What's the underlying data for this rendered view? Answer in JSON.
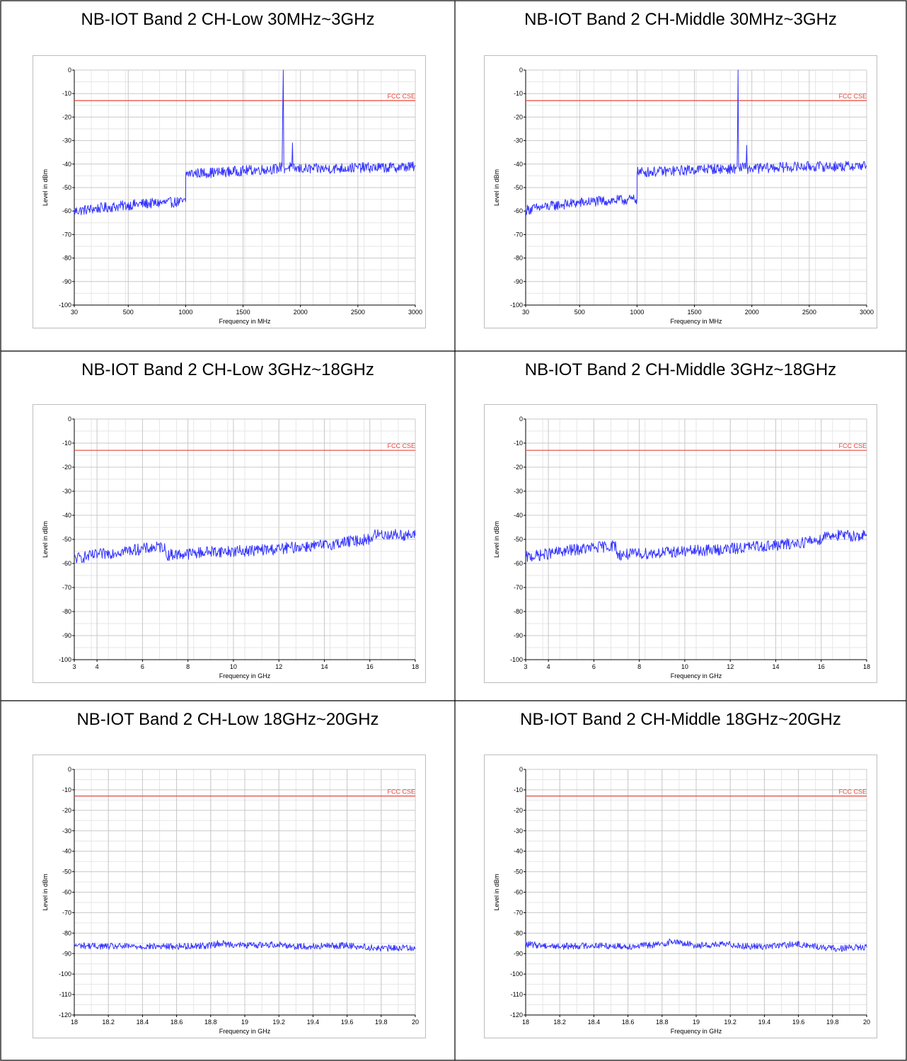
{
  "chart_data": [
    {
      "type": "line",
      "title": "NB-IOT Band 2 CH-Low 30MHz~3GHz",
      "xlabel": "Frequency in MHz",
      "ylabel": "Level in dBm",
      "xlim": [
        30,
        3000
      ],
      "ylim": [
        -100,
        0
      ],
      "xticks": [
        30,
        500,
        1000,
        1500,
        2000,
        2500,
        3000
      ],
      "xtick_labels": [
        "30",
        "500",
        "1000",
        "1500",
        "2000",
        "2500",
        "3000"
      ],
      "yticks": [
        0,
        -10,
        -20,
        -30,
        -40,
        -50,
        -60,
        -70,
        -80,
        -90,
        -100
      ],
      "ytick_labels": [
        "0",
        "-10",
        "-20",
        "-30",
        "-40",
        "-50",
        "-60",
        "-70",
        "-80",
        "-90",
        "-100"
      ],
      "grid": true,
      "limit": {
        "name": "FCC CSE",
        "value": -13,
        "color": "#e8473c"
      },
      "series": [
        {
          "color": "#3333ff",
          "points": [
            [
              30,
              -60
            ],
            [
              300,
              -58.5
            ],
            [
              600,
              -57
            ],
            [
              1000,
              -56
            ],
            [
              1001,
              -44
            ],
            [
              1300,
              -43.5
            ],
            [
              1600,
              -42.5
            ],
            [
              1800,
              -42
            ],
            [
              1840,
              -41
            ],
            [
              1845,
              -18
            ],
            [
              1850,
              0
            ],
            [
              1855,
              -41
            ],
            [
              1860,
              -42
            ],
            [
              1925,
              -41
            ],
            [
              1930,
              -31
            ],
            [
              1935,
              -42
            ],
            [
              2200,
              -42
            ],
            [
              2500,
              -41.5
            ],
            [
              2800,
              -41.5
            ],
            [
              3000,
              -41
            ]
          ],
          "noise": 2.2
        }
      ]
    },
    {
      "type": "line",
      "title": "NB-IOT Band 2 CH-Middle 30MHz~3GHz",
      "xlabel": "Frequency in MHz",
      "ylabel": "Level in dBm",
      "xlim": [
        30,
        3000
      ],
      "ylim": [
        -100,
        0
      ],
      "xticks": [
        30,
        500,
        1000,
        1500,
        2000,
        2500,
        3000
      ],
      "xtick_labels": [
        "30",
        "500",
        "1000",
        "1500",
        "2000",
        "2500",
        "3000"
      ],
      "yticks": [
        0,
        -10,
        -20,
        -30,
        -40,
        -50,
        -60,
        -70,
        -80,
        -90,
        -100
      ],
      "ytick_labels": [
        "0",
        "-10",
        "-20",
        "-30",
        "-40",
        "-50",
        "-60",
        "-70",
        "-80",
        "-90",
        "-100"
      ],
      "grid": true,
      "limit": {
        "name": "FCC CSE",
        "value": -13,
        "color": "#e8473c"
      },
      "series": [
        {
          "color": "#3333ff",
          "points": [
            [
              30,
              -59.5
            ],
            [
              300,
              -57.5
            ],
            [
              600,
              -56
            ],
            [
              1000,
              -55
            ],
            [
              1001,
              -43.5
            ],
            [
              1300,
              -43
            ],
            [
              1600,
              -42
            ],
            [
              1860,
              -42
            ],
            [
              1872,
              -41
            ],
            [
              1877,
              -20
            ],
            [
              1880,
              0
            ],
            [
              1885,
              -41
            ],
            [
              1890,
              -42
            ],
            [
              1950,
              -41
            ],
            [
              1955,
              -32
            ],
            [
              1960,
              -42
            ],
            [
              2200,
              -41.5
            ],
            [
              2500,
              -41
            ],
            [
              2800,
              -41
            ],
            [
              3000,
              -40.5
            ]
          ],
          "noise": 2.2
        }
      ]
    },
    {
      "type": "line",
      "title": "NB-IOT Band 2 CH-Low 3GHz~18GHz",
      "xlabel": "Frequency in GHz",
      "ylabel": "Level in dBm",
      "xlim": [
        3,
        18
      ],
      "ylim": [
        -100,
        0
      ],
      "xticks": [
        3,
        4,
        6,
        8,
        10,
        12,
        14,
        16,
        18
      ],
      "xtick_labels": [
        "3",
        "4",
        "6",
        "8",
        "10",
        "12",
        "14",
        "16",
        "18"
      ],
      "yticks": [
        0,
        -10,
        -20,
        -30,
        -40,
        -50,
        -60,
        -70,
        -80,
        -90,
        -100
      ],
      "ytick_labels": [
        "0",
        "-10",
        "-20",
        "-30",
        "-40",
        "-50",
        "-60",
        "-70",
        "-80",
        "-90",
        "-100"
      ],
      "grid": true,
      "limit": {
        "name": "FCC CSE",
        "value": -13,
        "color": "#e8473c"
      },
      "series": [
        {
          "color": "#3333ff",
          "points": [
            [
              3,
              -58
            ],
            [
              4,
              -56.5
            ],
            [
              5,
              -55
            ],
            [
              6,
              -54
            ],
            [
              6.95,
              -53
            ],
            [
              7.05,
              -56.5
            ],
            [
              8,
              -56
            ],
            [
              9,
              -55
            ],
            [
              10,
              -55
            ],
            [
              11,
              -54.5
            ],
            [
              12,
              -54
            ],
            [
              13,
              -53
            ],
            [
              14,
              -52.5
            ],
            [
              15,
              -51
            ],
            [
              16,
              -50
            ],
            [
              16.2,
              -48
            ],
            [
              17,
              -48
            ],
            [
              18,
              -48.5
            ]
          ],
          "noise": 2.4
        }
      ]
    },
    {
      "type": "line",
      "title": "NB-IOT Band 2 CH-Middle 3GHz~18GHz",
      "xlabel": "Frequency in GHz",
      "ylabel": "Level in dBm",
      "xlim": [
        3,
        18
      ],
      "ylim": [
        -100,
        0
      ],
      "xticks": [
        3,
        4,
        6,
        8,
        10,
        12,
        14,
        16,
        18
      ],
      "xtick_labels": [
        "3",
        "4",
        "6",
        "8",
        "10",
        "12",
        "14",
        "16",
        "18"
      ],
      "yticks": [
        0,
        -10,
        -20,
        -30,
        -40,
        -50,
        -60,
        -70,
        -80,
        -90,
        -100
      ],
      "ytick_labels": [
        "0",
        "-10",
        "-20",
        "-30",
        "-40",
        "-50",
        "-60",
        "-70",
        "-80",
        "-90",
        "-100"
      ],
      "grid": true,
      "limit": {
        "name": "FCC CSE",
        "value": -13,
        "color": "#e8473c"
      },
      "series": [
        {
          "color": "#3333ff",
          "points": [
            [
              3,
              -57.5
            ],
            [
              4,
              -56
            ],
            [
              5,
              -54.5
            ],
            [
              6,
              -53.5
            ],
            [
              6.95,
              -52.5
            ],
            [
              7.05,
              -56.5
            ],
            [
              8,
              -56
            ],
            [
              9,
              -55.5
            ],
            [
              10,
              -55
            ],
            [
              11,
              -54.5
            ],
            [
              12,
              -54
            ],
            [
              13,
              -53
            ],
            [
              14,
              -52.5
            ],
            [
              15,
              -51.5
            ],
            [
              16,
              -50
            ],
            [
              16.2,
              -48
            ],
            [
              17,
              -48.5
            ],
            [
              18,
              -48.5
            ]
          ],
          "noise": 2.4
        }
      ]
    },
    {
      "type": "line",
      "title": "NB-IOT Band 2 CH-Low 18GHz~20GHz",
      "xlabel": "Frequency in GHz",
      "ylabel": "Level in dBm",
      "xlim": [
        18,
        20
      ],
      "ylim": [
        -120,
        0
      ],
      "xticks": [
        18,
        18.2,
        18.4,
        18.6,
        18.8,
        19,
        19.2,
        19.4,
        19.6,
        19.8,
        20
      ],
      "xtick_labels": [
        "18",
        "18.2",
        "18.4",
        "18.6",
        "18.8",
        "19",
        "19.2",
        "19.4",
        "19.6",
        "19.8",
        "20"
      ],
      "yticks": [
        0,
        -10,
        -20,
        -30,
        -40,
        -50,
        -60,
        -70,
        -80,
        -90,
        -100,
        -110,
        -120
      ],
      "ytick_labels": [
        "0",
        "-10",
        "-20",
        "-30",
        "-40",
        "-50",
        "-60",
        "-70",
        "-80",
        "-90",
        "-100",
        "-110",
        "-120"
      ],
      "grid": true,
      "limit": {
        "name": "FCC CSE",
        "value": -13,
        "color": "#e8473c"
      },
      "series": [
        {
          "color": "#3333ff",
          "points": [
            [
              18,
              -86
            ],
            [
              18.2,
              -86.5
            ],
            [
              18.4,
              -86.5
            ],
            [
              18.6,
              -86.5
            ],
            [
              18.8,
              -86
            ],
            [
              18.85,
              -85
            ],
            [
              19,
              -86
            ],
            [
              19.2,
              -85.5
            ],
            [
              19.3,
              -86.5
            ],
            [
              19.4,
              -86.5
            ],
            [
              19.6,
              -86
            ],
            [
              19.8,
              -87.5
            ],
            [
              20,
              -87
            ]
          ],
          "noise": 1.6
        }
      ]
    },
    {
      "type": "line",
      "title": "NB-IOT Band 2 CH-Middle 18GHz~20GHz",
      "xlabel": "Frequency in GHz",
      "ylabel": "Level in dBm",
      "xlim": [
        18,
        20
      ],
      "ylim": [
        -120,
        0
      ],
      "xticks": [
        18,
        18.2,
        18.4,
        18.6,
        18.8,
        19,
        19.2,
        19.4,
        19.6,
        19.8,
        20
      ],
      "xtick_labels": [
        "18",
        "18.2",
        "18.4",
        "18.6",
        "18.8",
        "19",
        "19.2",
        "19.4",
        "19.6",
        "19.8",
        "20"
      ],
      "yticks": [
        0,
        -10,
        -20,
        -30,
        -40,
        -50,
        -60,
        -70,
        -80,
        -90,
        -100,
        -110,
        -120
      ],
      "ytick_labels": [
        "0",
        "-10",
        "-20",
        "-30",
        "-40",
        "-50",
        "-60",
        "-70",
        "-80",
        "-90",
        "-100",
        "-110",
        "-120"
      ],
      "grid": true,
      "limit": {
        "name": "FCC CSE",
        "value": -13,
        "color": "#e8473c"
      },
      "series": [
        {
          "color": "#3333ff",
          "points": [
            [
              18,
              -85.5
            ],
            [
              18.2,
              -86.5
            ],
            [
              18.4,
              -86
            ],
            [
              18.6,
              -86.5
            ],
            [
              18.8,
              -85.5
            ],
            [
              18.85,
              -84
            ],
            [
              19,
              -86
            ],
            [
              19.2,
              -85.5
            ],
            [
              19.3,
              -86.5
            ],
            [
              19.4,
              -86.5
            ],
            [
              19.6,
              -85.5
            ],
            [
              19.8,
              -87.5
            ],
            [
              20,
              -87
            ]
          ],
          "noise": 1.6
        }
      ]
    }
  ]
}
